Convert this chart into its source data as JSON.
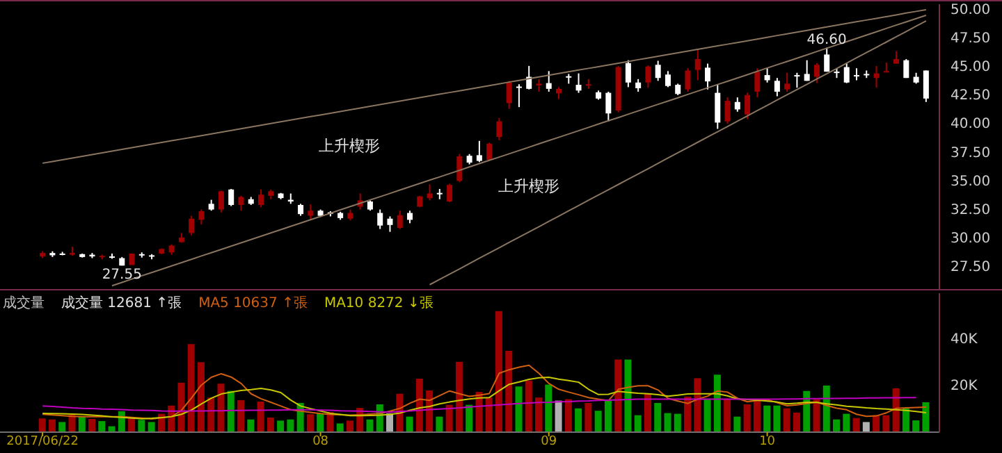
{
  "chart_data": [
    {
      "type": "candlestick",
      "tick_labels": "y",
      "ylim": [
        25.5,
        50.4
      ],
      "categories": [
        null,
        null,
        null,
        null,
        null,
        null,
        null,
        null,
        null,
        null,
        null,
        null,
        null,
        null,
        null,
        null,
        null,
        null,
        null,
        null,
        null,
        null,
        null,
        null,
        null,
        null,
        null,
        null,
        null,
        null,
        null,
        null,
        null,
        null,
        null,
        null,
        null,
        null,
        null,
        null,
        null,
        null,
        null,
        null,
        null,
        null,
        null,
        null,
        null,
        null,
        null,
        null,
        null,
        null,
        null,
        null,
        null,
        null,
        null,
        null,
        null,
        null,
        null,
        null,
        null,
        null,
        null,
        null,
        null,
        null,
        null,
        null,
        null,
        null,
        null,
        null,
        null,
        null,
        null,
        null,
        null,
        null,
        null,
        null,
        null,
        null,
        null,
        null,
        null,
        null
      ],
      "yticks": [
        {
          "value": 27.5,
          "label": "27.50"
        },
        {
          "value": 30,
          "label": "30.00"
        },
        {
          "value": 32.5,
          "label": "32.50"
        },
        {
          "value": 35,
          "label": "35.00"
        },
        {
          "value": 37.5,
          "label": "37.50"
        },
        {
          "value": 40,
          "label": "40.00"
        },
        {
          "value": 42.5,
          "label": "42.50"
        },
        {
          "value": 45,
          "label": "45.00"
        },
        {
          "value": 47.5,
          "label": "47.50"
        },
        {
          "value": 50,
          "label": "50.00"
        }
      ],
      "ohlc": [
        [
          28.35,
          28.8,
          28.2,
          28.65
        ],
        [
          28.65,
          28.8,
          28.3,
          28.45
        ],
        [
          28.6,
          28.75,
          28.45,
          28.55
        ],
        [
          28.5,
          29.2,
          28.4,
          28.65
        ],
        [
          28.55,
          28.6,
          28.25,
          28.3
        ],
        [
          28.5,
          28.65,
          28.2,
          28.35
        ],
        [
          28.3,
          28.5,
          28.1,
          28.4
        ],
        [
          28.35,
          28.6,
          28.15,
          28.3
        ],
        [
          28.2,
          28.3,
          27.55,
          27.55
        ],
        [
          27.6,
          28.6,
          27.6,
          28.6
        ],
        [
          28.55,
          28.7,
          28.25,
          28.45
        ],
        [
          28.45,
          28.55,
          28.1,
          28.4
        ],
        [
          28.6,
          29.05,
          28.55,
          29.0
        ],
        [
          28.7,
          29.4,
          28.5,
          29.3
        ],
        [
          29.6,
          30.4,
          29.55,
          30.0
        ],
        [
          30.4,
          31.9,
          30.2,
          31.65
        ],
        [
          31.55,
          32.45,
          31.15,
          32.3
        ],
        [
          32.95,
          33.3,
          32.35,
          32.45
        ],
        [
          32.45,
          34.1,
          32.2,
          34.05
        ],
        [
          34.2,
          34.25,
          32.75,
          32.85
        ],
        [
          32.85,
          33.65,
          32.35,
          33.55
        ],
        [
          33.35,
          33.55,
          32.85,
          32.95
        ],
        [
          32.85,
          34.2,
          32.65,
          33.75
        ],
        [
          33.65,
          34.2,
          33.35,
          34.05
        ],
        [
          33.85,
          33.9,
          33.35,
          33.45
        ],
        [
          33.3,
          33.85,
          32.95,
          33.15
        ],
        [
          32.85,
          32.95,
          31.9,
          32.05
        ],
        [
          31.9,
          32.9,
          31.55,
          32.35
        ],
        [
          32.35,
          32.45,
          31.8,
          31.9
        ],
        [
          32.2,
          32.3,
          31.85,
          32.15
        ],
        [
          32.15,
          32.25,
          31.55,
          31.7
        ],
        [
          31.65,
          32.45,
          31.5,
          32.15
        ],
        [
          32.7,
          33.85,
          32.45,
          33.25
        ],
        [
          33.15,
          33.25,
          32.35,
          32.45
        ],
        [
          32.15,
          32.45,
          30.75,
          31.05
        ],
        [
          31.65,
          31.85,
          30.5,
          31.1
        ],
        [
          30.85,
          32.35,
          30.75,
          31.95
        ],
        [
          32.15,
          32.35,
          31.25,
          31.55
        ],
        [
          32.7,
          33.65,
          32.65,
          33.6
        ],
        [
          33.45,
          34.65,
          33.25,
          33.85
        ],
        [
          33.9,
          34.25,
          33.35,
          33.85
        ],
        [
          33.15,
          34.7,
          33.1,
          34.6
        ],
        [
          34.95,
          37.3,
          34.85,
          37.1
        ],
        [
          37.15,
          37.3,
          36.4,
          36.55
        ],
        [
          37.2,
          38.45,
          36.6,
          36.7
        ],
        [
          36.8,
          38.3,
          36.7,
          38.2
        ],
        [
          38.8,
          40.45,
          38.5,
          40.15
        ],
        [
          41.75,
          43.7,
          41.25,
          43.55
        ],
        [
          43.2,
          43.4,
          41.4,
          43.1
        ],
        [
          44.05,
          45.0,
          42.95,
          43.0
        ],
        [
          43.3,
          43.85,
          42.75,
          43.45
        ],
        [
          43.5,
          44.55,
          42.75,
          43.0
        ],
        [
          42.6,
          43.15,
          42.1,
          43.0
        ],
        [
          44.1,
          44.3,
          43.45,
          44.0
        ],
        [
          43.35,
          44.35,
          42.65,
          42.85
        ],
        [
          43.3,
          43.85,
          43.0,
          43.4
        ],
        [
          42.7,
          42.85,
          42.05,
          42.15
        ],
        [
          42.65,
          42.75,
          40.15,
          40.85
        ],
        [
          41.1,
          45.0,
          40.95,
          44.9
        ],
        [
          45.25,
          45.5,
          43.15,
          43.55
        ],
        [
          43.55,
          43.85,
          42.75,
          43.05
        ],
        [
          43.55,
          45.05,
          43.1,
          44.95
        ],
        [
          45.1,
          45.45,
          43.7,
          43.95
        ],
        [
          44.25,
          44.55,
          43.15,
          43.25
        ],
        [
          43.35,
          43.45,
          42.45,
          42.55
        ],
        [
          42.95,
          44.8,
          42.75,
          44.6
        ],
        [
          44.65,
          46.5,
          43.75,
          45.6
        ],
        [
          44.85,
          45.2,
          42.95,
          43.65
        ],
        [
          42.65,
          43.35,
          39.5,
          40.05
        ],
        [
          40.15,
          42.25,
          39.95,
          41.95
        ],
        [
          41.85,
          42.25,
          41.0,
          41.2
        ],
        [
          40.75,
          42.65,
          40.35,
          42.45
        ],
        [
          42.75,
          44.8,
          42.25,
          44.5
        ],
        [
          44.2,
          44.8,
          43.55,
          43.75
        ],
        [
          43.7,
          43.95,
          42.35,
          42.75
        ],
        [
          42.95,
          44.4,
          42.75,
          43.45
        ],
        [
          44.2,
          44.4,
          43.1,
          44.15
        ],
        [
          44.3,
          45.5,
          43.7,
          43.7
        ],
        [
          44.05,
          45.25,
          43.5,
          45.1
        ],
        [
          46.0,
          46.6,
          44.5,
          44.5
        ],
        [
          44.5,
          44.8,
          43.95,
          44.45
        ],
        [
          44.9,
          45.25,
          43.5,
          43.55
        ],
        [
          44.2,
          44.8,
          43.75,
          44.1
        ],
        [
          44.3,
          44.6,
          43.95,
          44.2
        ],
        [
          43.95,
          45.0,
          43.1,
          44.35
        ],
        [
          44.5,
          45.3,
          44.5,
          44.55
        ],
        [
          45.2,
          46.3,
          45.2,
          45.6
        ],
        [
          45.5,
          45.6,
          43.95,
          43.95
        ],
        [
          44.05,
          44.4,
          43.45,
          43.55
        ],
        [
          44.6,
          44.6,
          41.85,
          42.15
        ]
      ],
      "colors": [
        "#a00000",
        "#ffffff",
        "#ffffff",
        "#a00000",
        "#ffffff",
        "#ffffff",
        "#a00000",
        "#ffffff",
        "#ffffff",
        "#a00000",
        "#ffffff",
        "#ffffff",
        "#a00000",
        "#a00000",
        "#a00000",
        "#a00000",
        "#a00000",
        "#ffffff",
        "#a00000",
        "#ffffff",
        "#a00000",
        "#ffffff",
        "#a00000",
        "#a00000",
        "#ffffff",
        "#ffffff",
        "#ffffff",
        "#a00000",
        "#ffffff",
        "#ffffff",
        "#ffffff",
        "#a00000",
        "#a00000",
        "#ffffff",
        "#ffffff",
        "#ffffff",
        "#a00000",
        "#ffffff",
        "#a00000",
        "#a00000",
        "#ffffff",
        "#a00000",
        "#a00000",
        "#ffffff",
        "#ffffff",
        "#a00000",
        "#a00000",
        "#a00000",
        "#ffffff",
        "#ffffff",
        "#a00000",
        "#ffffff",
        "#a00000",
        "#ffffff",
        "#ffffff",
        "#a00000",
        "#ffffff",
        "#ffffff",
        "#a00000",
        "#ffffff",
        "#ffffff",
        "#a00000",
        "#ffffff",
        "#ffffff",
        "#ffffff",
        "#a00000",
        "#a00000",
        "#ffffff",
        "#ffffff",
        "#a00000",
        "#ffffff",
        "#a00000",
        "#a00000",
        "#ffffff",
        "#ffffff",
        "#a00000",
        "#ffffff",
        "#ffffff",
        "#a00000",
        "#ffffff",
        "#ffffff",
        "#ffffff",
        "#ffffff",
        "#ffffff",
        "#a00000",
        "#a00000",
        "#a00000",
        "#ffffff",
        "#ffffff",
        "#ffffff"
      ],
      "series": [
        {
          "type": "line",
          "color": "#8a7560",
          "values": [
            36.5,
            36.65,
            36.8,
            36.95,
            37.1,
            37.25,
            37.4,
            37.56,
            37.71,
            37.86,
            38.01,
            38.16,
            38.31,
            38.46,
            38.61,
            38.76,
            38.91,
            39.06,
            39.21,
            39.36,
            39.52,
            39.67,
            39.82,
            39.97,
            40.12,
            40.27,
            40.42,
            40.57,
            40.72,
            40.87,
            41.02,
            41.17,
            41.32,
            41.47,
            41.63,
            41.78,
            41.93,
            42.08,
            42.23,
            42.38,
            42.53,
            42.68,
            42.83,
            42.98,
            43.13,
            43.28,
            43.43,
            43.59,
            43.74,
            43.89,
            44.04,
            44.19,
            44.34,
            44.49,
            44.64,
            44.79,
            44.94,
            45.09,
            45.24,
            45.39,
            45.55,
            45.7,
            45.85,
            46.0,
            46.15,
            46.3,
            46.45,
            46.6,
            46.75,
            46.9,
            47.05,
            47.2,
            47.35,
            47.5,
            47.66,
            47.81,
            47.96,
            48.11,
            48.26,
            48.41,
            48.56,
            48.71,
            48.86,
            49.01,
            49.16,
            49.31,
            49.46,
            49.62,
            49.77,
            49.92
          ]
        },
        {
          "type": "line",
          "color": "#8a7560",
          "values": [
            null,
            null,
            null,
            null,
            null,
            null,
            null,
            25.79,
            26.08,
            26.37,
            26.66,
            26.94,
            27.23,
            27.52,
            27.81,
            28.1,
            28.39,
            28.67,
            28.96,
            29.25,
            29.54,
            29.83,
            30.12,
            30.4,
            30.69,
            30.98,
            31.27,
            31.56,
            31.85,
            32.13,
            32.42,
            32.71,
            33.0,
            33.29,
            33.57,
            33.86,
            34.15,
            34.44,
            34.73,
            35.02,
            35.3,
            35.59,
            35.88,
            36.17,
            36.46,
            36.75,
            37.03,
            37.32,
            37.61,
            37.9,
            38.19,
            38.48,
            38.76,
            39.05,
            39.34,
            39.63,
            39.92,
            40.21,
            40.49,
            40.78,
            41.07,
            41.36,
            41.65,
            41.93,
            42.22,
            42.51,
            42.8,
            43.09,
            43.38,
            43.66,
            43.95,
            44.24,
            44.53,
            44.82,
            45.11,
            45.39,
            45.68,
            45.97,
            46.26,
            46.55,
            46.84,
            47.12,
            47.41,
            47.7,
            47.99,
            48.28,
            48.57,
            48.85,
            49.14,
            49.43
          ]
        },
        {
          "type": "line",
          "color": "#8a7560",
          "values": [
            null,
            null,
            null,
            null,
            null,
            null,
            null,
            null,
            null,
            null,
            null,
            null,
            null,
            null,
            null,
            null,
            null,
            null,
            null,
            null,
            null,
            null,
            null,
            null,
            null,
            null,
            null,
            null,
            null,
            null,
            null,
            null,
            null,
            null,
            null,
            null,
            null,
            null,
            null,
            25.88,
            26.34,
            26.8,
            27.26,
            27.73,
            28.19,
            28.65,
            29.11,
            29.57,
            30.03,
            30.49,
            30.95,
            31.41,
            31.87,
            32.34,
            32.8,
            33.26,
            33.72,
            34.18,
            34.64,
            35.1,
            35.56,
            36.02,
            36.49,
            36.95,
            37.41,
            37.87,
            38.33,
            38.79,
            39.25,
            39.71,
            40.17,
            40.63,
            41.1,
            41.56,
            42.02,
            42.48,
            42.94,
            43.4,
            43.86,
            44.32,
            44.78,
            45.25,
            45.71,
            46.17,
            46.63,
            47.09,
            47.55,
            48.01,
            48.48,
            48.94
          ]
        }
      ],
      "annotations": [
        "上升楔形",
        "上升楔形",
        {
          "text": "46.60",
          "y": 46.6
        },
        {
          "text": "27.55",
          "y": 27.55
        }
      ]
    },
    {
      "type": "bar",
      "title": "成交量",
      "ylim": [
        0,
        59000
      ],
      "yticks": [
        {
          "value": 20000,
          "label": "20K"
        },
        {
          "value": 40000,
          "label": "40K"
        }
      ],
      "categories": [
        "2017/06/22",
        null,
        null,
        null,
        null,
        null,
        null,
        null,
        null,
        null,
        null,
        null,
        null,
        null,
        null,
        null,
        null,
        null,
        null,
        null,
        null,
        null,
        null,
        null,
        null,
        null,
        null,
        null,
        "08",
        null,
        null,
        null,
        null,
        null,
        null,
        null,
        null,
        null,
        null,
        null,
        null,
        null,
        null,
        null,
        null,
        null,
        null,
        null,
        null,
        null,
        null,
        "09",
        null,
        null,
        null,
        null,
        null,
        null,
        null,
        null,
        null,
        null,
        null,
        null,
        null,
        null,
        null,
        null,
        null,
        null,
        null,
        null,
        null,
        "10",
        null,
        null,
        null,
        null,
        null,
        null,
        null,
        null,
        null,
        null,
        null,
        null,
        null,
        null,
        null,
        null
      ],
      "series": [
        {
          "type": "bar",
          "values": [
            5800,
            5400,
            4300,
            7400,
            6600,
            5600,
            4700,
            2500,
            8900,
            6200,
            5200,
            4300,
            7800,
            11300,
            21000,
            37400,
            29700,
            14700,
            20600,
            17500,
            13600,
            5400,
            13000,
            6200,
            4900,
            5400,
            12400,
            7600,
            8000,
            8500,
            3700,
            4900,
            10300,
            5400,
            11800,
            8000,
            16300,
            6600,
            22700,
            17700,
            6600,
            11600,
            29900,
            11600,
            17100,
            14700,
            51400,
            34500,
            19400,
            21900,
            14700,
            20200,
            13400,
            14000,
            10100,
            12400,
            9100,
            13400,
            30800,
            30800,
            7200,
            16300,
            12400,
            8100,
            7800,
            15100,
            22900,
            14000,
            24400,
            14000,
            6600,
            11800,
            14000,
            11300,
            11300,
            10100,
            8300,
            17500,
            14000,
            19800,
            5400,
            7800,
            6000,
            4300,
            7200,
            7200,
            18600,
            10100,
            5000,
            12681
          ],
          "colors": [
            "#a00000",
            "#a00000",
            "#00a000",
            "#a00000",
            "#00a000",
            "#a00000",
            "#00a000",
            "#00a000",
            "#00a000",
            "#a00000",
            "#00a000",
            "#00a000",
            "#a00000",
            "#a00000",
            "#a00000",
            "#a00000",
            "#a00000",
            "#a00000",
            "#a00000",
            "#00a000",
            "#a00000",
            "#00a000",
            "#a00000",
            "#a00000",
            "#00a000",
            "#00a000",
            "#00a000",
            "#a00000",
            "#00a000",
            "#a00000",
            "#00a000",
            "#a00000",
            "#a00000",
            "#00a000",
            "#00a000",
            "#b0b0b0",
            "#a00000",
            "#00a000",
            "#a00000",
            "#a00000",
            "#00a000",
            "#a00000",
            "#a00000",
            "#00a000",
            "#a00000",
            "#a00000",
            "#a00000",
            "#a00000",
            "#00a000",
            "#a00000",
            "#a00000",
            "#00a000",
            "#b0b0b0",
            "#a00000",
            "#00a000",
            "#a00000",
            "#00a000",
            "#00a000",
            "#a00000",
            "#00a000",
            "#00a000",
            "#a00000",
            "#00a000",
            "#00a000",
            "#00a000",
            "#a00000",
            "#a00000",
            "#00a000",
            "#00a000",
            "#a00000",
            "#00a000",
            "#a00000",
            "#a00000",
            "#00a000",
            "#00a000",
            "#a00000",
            "#a00000",
            "#00a000",
            "#a00000",
            "#00a000",
            "#00a000",
            "#00a000",
            "#a00000",
            "#b0b0b0",
            "#a00000",
            "#a00000",
            "#a00000",
            "#00a000",
            "#00a000",
            "#00a000"
          ]
        },
        {
          "type": "line",
          "name": "MA5",
          "color": "#d06010",
          "values": [
            7600,
            7300,
            7000,
            6700,
            6600,
            6600,
            6600,
            6600,
            6600,
            6300,
            6000,
            5600,
            6100,
            6600,
            9300,
            14500,
            20000,
            23300,
            24800,
            23400,
            20700,
            16300,
            14200,
            12700,
            11100,
            9500,
            8900,
            8400,
            7900,
            7500,
            7400,
            7200,
            7400,
            7700,
            7900,
            8900,
            10100,
            12300,
            14000,
            13500,
            15500,
            17500,
            16300,
            15200,
            15700,
            16400,
            25000,
            26500,
            27600,
            28400,
            25000,
            20700,
            18200,
            17000,
            15900,
            14700,
            14000,
            13400,
            18200,
            19000,
            19700,
            19700,
            17900,
            14400,
            13200,
            12200,
            14000,
            15300,
            17500,
            17000,
            14400,
            12900,
            13400,
            13800,
            12500,
            11200,
            11600,
            12200,
            12800,
            11300,
            10200,
            9500,
            7600,
            6700,
            6900,
            8200,
            10100,
            10300,
            10500,
            10637
          ]
        },
        {
          "type": "line",
          "name": "MA10",
          "color": "#c8c800",
          "values": [
            8000,
            7900,
            7800,
            7700,
            7500,
            7200,
            6900,
            6500,
            6300,
            6000,
            5700,
            5900,
            6200,
            6600,
            7600,
            9400,
            12000,
            14400,
            16200,
            17000,
            17700,
            18100,
            18600,
            17900,
            16800,
            13600,
            11100,
            10000,
            9000,
            8000,
            7500,
            7000,
            7000,
            7100,
            7200,
            7500,
            8100,
            9300,
            10300,
            10900,
            12000,
            12800,
            13500,
            14100,
            14500,
            14700,
            17600,
            20300,
            21300,
            22400,
            23100,
            23300,
            22500,
            21900,
            21200,
            18200,
            16000,
            16100,
            17300,
            16900,
            16500,
            16300,
            15900,
            15300,
            15700,
            16200,
            16300,
            16300,
            16300,
            15400,
            14100,
            13900,
            13600,
            13200,
            12800,
            12000,
            12300,
            12700,
            12600,
            12000,
            11600,
            11000,
            10700,
            10300,
            10000,
            9800,
            9500,
            9200,
            8800,
            8272
          ]
        },
        {
          "type": "line",
          "color": "#c000c0",
          "values": [
            11100,
            10900,
            10600,
            10300,
            10100,
            10000,
            9800,
            9700,
            9600,
            9400,
            9300,
            9200,
            9000,
            8900,
            8900,
            9000,
            9000,
            9100,
            9100,
            9200,
            9200,
            9300,
            9300,
            9400,
            9400,
            9500,
            9500,
            9500,
            9400,
            9300,
            9100,
            9000,
            8900,
            8800,
            8600,
            8500,
            8800,
            9000,
            9300,
            9600,
            9800,
            10000,
            10300,
            10700,
            11000,
            11300,
            11600,
            11900,
            12200,
            12400,
            12600,
            12700,
            12900,
            13000,
            13200,
            13300,
            13500,
            13600,
            13700,
            13900,
            14000,
            14000,
            14000,
            14000,
            14000,
            14000,
            14000,
            14000,
            14000,
            14000,
            14000,
            14000,
            14000,
            14000,
            14000,
            14100,
            14100,
            14200,
            14200,
            14300,
            14300,
            14400,
            14400,
            14500,
            14500,
            14600,
            14600,
            14700,
            14700,
            null
          ]
        }
      ],
      "annotations": [
        "成交量 12681 ↑張",
        "10637 ↑張",
        "8272 ↓張"
      ]
    }
  ]
}
